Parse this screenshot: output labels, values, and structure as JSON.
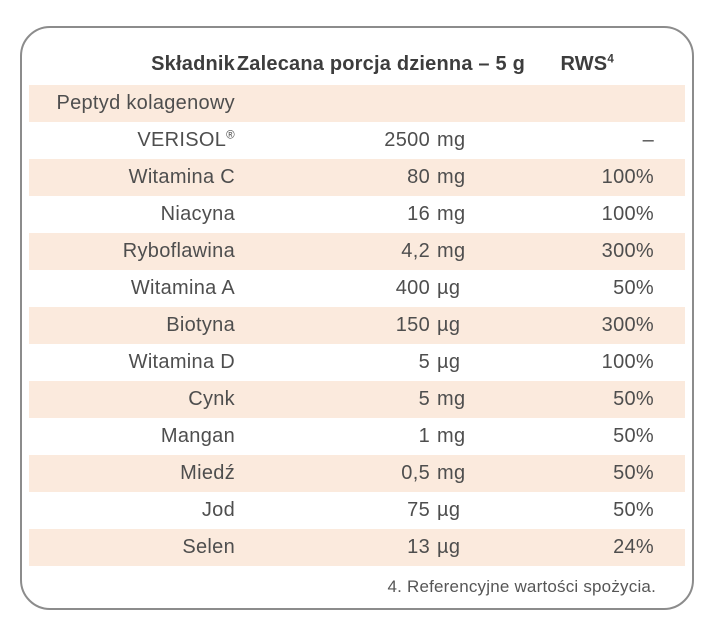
{
  "table": {
    "headers": {
      "ingredient": "Składnik",
      "portion": "Zalecana porcja dzienna – 5 g",
      "rws": "RWS",
      "rws_sup": "4"
    },
    "rows": [
      {
        "name": "Peptyd kolagenowy",
        "name_sup": "",
        "amount": "",
        "unit": "",
        "rws": ""
      },
      {
        "name": "VERISOL",
        "name_sup": "®",
        "amount": "2500",
        "unit": "mg",
        "rws": "–"
      },
      {
        "name": "Witamina C",
        "name_sup": "",
        "amount": "80",
        "unit": "mg",
        "rws": "100%"
      },
      {
        "name": "Niacyna",
        "name_sup": "",
        "amount": "16",
        "unit": "mg",
        "rws": "100%"
      },
      {
        "name": "Ryboflawina",
        "name_sup": "",
        "amount": "4,2",
        "unit": "mg",
        "rws": "300%"
      },
      {
        "name": "Witamina A",
        "name_sup": "",
        "amount": "400",
        "unit": "µg",
        "rws": "50%"
      },
      {
        "name": "Biotyna",
        "name_sup": "",
        "amount": "150",
        "unit": "µg",
        "rws": "300%"
      },
      {
        "name": "Witamina D",
        "name_sup": "",
        "amount": "5",
        "unit": "µg",
        "rws": "100%"
      },
      {
        "name": "Cynk",
        "name_sup": "",
        "amount": "5",
        "unit": "mg",
        "rws": "50%"
      },
      {
        "name": "Mangan",
        "name_sup": "",
        "amount": "1",
        "unit": "mg",
        "rws": "50%"
      },
      {
        "name": "Miedź",
        "name_sup": "",
        "amount": "0,5",
        "unit": "mg",
        "rws": "50%"
      },
      {
        "name": "Jod",
        "name_sup": "",
        "amount": "75",
        "unit": "µg",
        "rws": "50%"
      },
      {
        "name": "Selen",
        "name_sup": "",
        "amount": "13",
        "unit": "µg",
        "rws": "24%"
      }
    ],
    "footnote": "4. Referencyjne wartości spożycia."
  },
  "colors": {
    "stripe": "#fbeadd",
    "border": "#8c8c8c",
    "header_text": "#3d3d3d",
    "body_text": "#4e4e4e",
    "footnote_text": "#565656"
  }
}
